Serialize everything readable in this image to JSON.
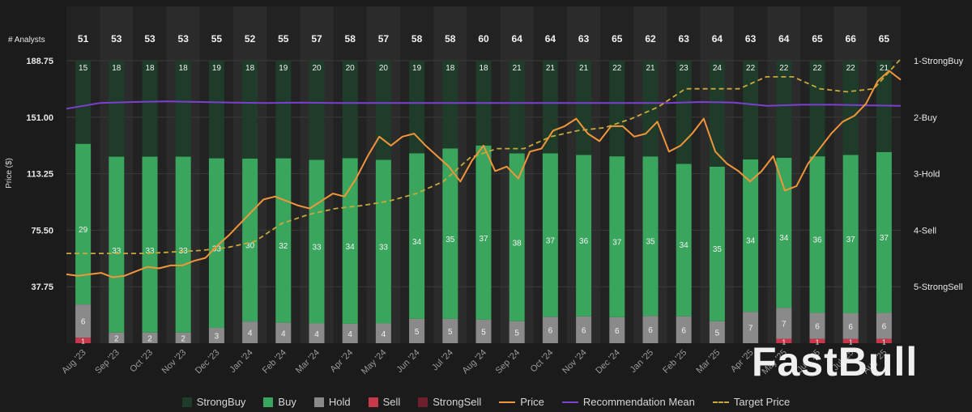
{
  "chart_data": {
    "type": "bar",
    "title": "",
    "analysts_label": "# Analysts",
    "ylabel": "Price ($)",
    "ylim": [
      0,
      188.75
    ],
    "y_ticks": [
      "188.75",
      "151.00",
      "113.25",
      "75.50",
      "37.75"
    ],
    "y_tick_values": [
      188.75,
      151.0,
      113.25,
      75.5,
      37.75
    ],
    "right_axis_labels": [
      "1-StrongBuy",
      "2-Buy",
      "3-Hold",
      "4-Sell",
      "5-StrongSell"
    ],
    "right_axis_range": [
      1,
      5
    ],
    "categories": [
      "Aug '23",
      "Sep '23",
      "Oct '23",
      "Nov '23",
      "Dec '23",
      "Jan '24",
      "Feb '24",
      "Mar '24",
      "Apr '24",
      "May '24",
      "Jun '24",
      "Jul '24",
      "Aug '24",
      "Sep '24",
      "Oct '24",
      "Nov '24",
      "Dec '24",
      "Jan '25",
      "Feb '25",
      "Mar '25",
      "Apr '25",
      "May '25",
      "Jun '25",
      "Jul '25",
      "Aug '25"
    ],
    "analysts": [
      51,
      53,
      53,
      53,
      55,
      52,
      55,
      57,
      58,
      57,
      58,
      58,
      60,
      64,
      64,
      63,
      65,
      62,
      63,
      64,
      63,
      64,
      65,
      66,
      65
    ],
    "series": [
      {
        "name": "StrongBuy",
        "color": "#1f3b2a",
        "values": [
          15,
          18,
          18,
          18,
          19,
          18,
          19,
          20,
          20,
          20,
          19,
          18,
          18,
          21,
          21,
          21,
          22,
          21,
          23,
          24,
          22,
          22,
          22,
          22,
          21
        ]
      },
      {
        "name": "Buy",
        "color": "#3aa55d",
        "values": [
          29,
          33,
          33,
          33,
          33,
          30,
          32,
          33,
          34,
          33,
          34,
          35,
          37,
          38,
          37,
          36,
          37,
          35,
          34,
          35,
          34,
          34,
          36,
          37,
          37
        ]
      },
      {
        "name": "Hold",
        "color": "#8a8a8a",
        "values": [
          6,
          2,
          2,
          2,
          3,
          4,
          4,
          4,
          4,
          4,
          5,
          5,
          5,
          5,
          6,
          6,
          6,
          6,
          6,
          5,
          7,
          7,
          6,
          6,
          6
        ]
      },
      {
        "name": "Sell",
        "color": "#c8384a",
        "values": [
          1,
          0,
          0,
          0,
          0,
          0,
          0,
          0,
          0,
          0,
          0,
          0,
          0,
          0,
          0,
          0,
          0,
          0,
          0,
          0,
          0,
          1,
          1,
          1,
          1
        ]
      },
      {
        "name": "StrongSell",
        "color": "#6e1f2c",
        "values": [
          0,
          0,
          0,
          0,
          0,
          0,
          0,
          0,
          0,
          0,
          0,
          0,
          0,
          0,
          0,
          0,
          0,
          0,
          0,
          0,
          0,
          0,
          0,
          0,
          0
        ]
      }
    ],
    "price": {
      "name": "Price",
      "color": "#f0953a",
      "values": [
        46,
        45,
        46,
        47,
        44,
        45,
        48,
        51,
        50,
        52,
        52,
        55,
        57,
        65,
        72,
        80,
        88,
        96,
        98,
        95,
        92,
        90,
        95,
        100,
        98,
        110,
        125,
        138,
        132,
        138,
        140,
        132,
        125,
        118,
        108,
        122,
        132,
        115,
        118,
        110,
        128,
        130,
        142,
        145,
        150,
        140,
        135,
        145,
        145,
        138,
        140,
        148,
        128,
        132,
        140,
        150,
        128,
        120,
        115,
        108,
        115,
        125,
        102,
        105,
        120,
        130,
        140,
        148,
        152,
        160,
        175,
        182,
        176
      ]
    },
    "target_price": {
      "name": "Target Price",
      "color": "#c8a83a",
      "values": [
        60,
        60,
        60,
        60,
        61,
        62,
        64,
        68,
        80,
        86,
        90,
        92,
        95,
        100,
        108,
        124,
        130,
        130,
        138,
        142,
        144,
        150,
        158,
        170,
        170,
        170,
        178,
        178,
        170,
        168,
        170,
        190
      ]
    },
    "recommendation_mean": {
      "name": "Recommendation Mean",
      "color": "#7b3fd1",
      "values": [
        1.85,
        1.75,
        1.73,
        1.72,
        1.73,
        1.74,
        1.75,
        1.74,
        1.75,
        1.75,
        1.75,
        1.75,
        1.75,
        1.75,
        1.75,
        1.75,
        1.75,
        1.75,
        1.75,
        1.73,
        1.74,
        1.8,
        1.78,
        1.78,
        1.79,
        1.8
      ]
    }
  },
  "legend": [
    {
      "label": "StrongBuy",
      "color": "#1f3b2a",
      "kind": "box"
    },
    {
      "label": "Buy",
      "color": "#3aa55d",
      "kind": "box"
    },
    {
      "label": "Hold",
      "color": "#8a8a8a",
      "kind": "box"
    },
    {
      "label": "Sell",
      "color": "#c8384a",
      "kind": "box"
    },
    {
      "label": "StrongSell",
      "color": "#6e1f2c",
      "kind": "box"
    },
    {
      "label": "Price",
      "color": "#f0953a",
      "kind": "line"
    },
    {
      "label": "Recommendation Mean",
      "color": "#7b3fd1",
      "kind": "line"
    },
    {
      "label": "Target Price",
      "color": "#c8a83a",
      "kind": "dash"
    }
  ],
  "watermark": "FastBull"
}
